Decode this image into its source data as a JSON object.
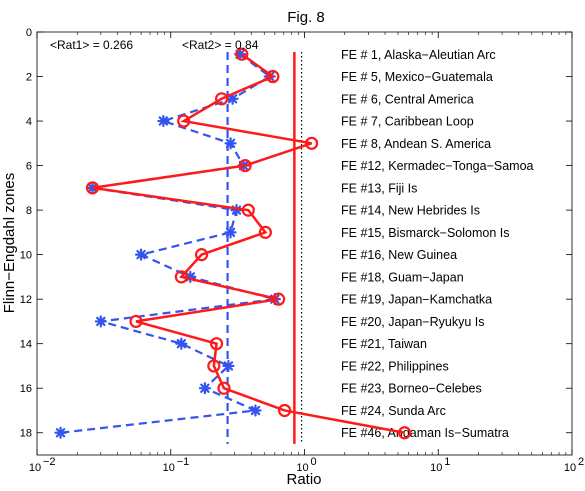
{
  "chart_data": {
    "type": "line",
    "title": "Fig. 8",
    "xlabel": "Ratio",
    "ylabel": "Flinn−Engdahl zones",
    "xscale": "log",
    "xlim": [
      0.01,
      100
    ],
    "ylim": [
      0,
      19
    ],
    "y_reversed": true,
    "grid": false,
    "xticks": [
      0.01,
      0.1,
      1,
      10,
      100
    ],
    "xtick_labels": [
      [
        "10",
        "−2"
      ],
      [
        "10",
        "−1"
      ],
      [
        "10",
        "0"
      ],
      [
        "10",
        "1"
      ],
      [
        "10",
        "2"
      ]
    ],
    "yticks": [
      0,
      2,
      4,
      6,
      8,
      10,
      12,
      14,
      16,
      18
    ],
    "ytick_labels": [
      "0",
      "2",
      "4",
      "6",
      "8",
      "10",
      "12",
      "14",
      "16",
      "18"
    ],
    "annotations": {
      "rat1": "<Rat1> = 0.266",
      "rat2": "<Rat2> = 0.84"
    },
    "zone_labels": [
      "FE # 1, Alaska−Aleutian Arc",
      "FE # 5, Mexico−Guatemala",
      "FE # 6, Central America",
      "FE # 7, Caribbean Loop",
      "FE # 8, Andean S. America",
      "FE #12, Kermadec−Tonga−Samoa",
      "FE #13, Fiji Is",
      "FE #14, New Hebrides Is",
      "FE #15, Bismarck−Solomon Is",
      "FE #16, New Guinea",
      "FE #18, Guam−Japan",
      "FE #19, Japan−Kamchatka",
      "FE #20, Japan−Ryukyu Is",
      "FE #21, Taiwan",
      "FE #22, Philippines",
      "FE #23, Borneo−Celebes",
      "FE #24, Sunda Arc",
      "FE #46, Andaman Is−Sumatra"
    ],
    "series": [
      {
        "marker": "asterisk",
        "style": "dashed",
        "color": "#3355ee",
        "y": [
          1,
          2,
          3,
          4,
          5,
          6,
          7,
          8,
          9,
          10,
          11,
          12,
          13,
          14,
          15,
          16,
          17,
          18
        ],
        "x": [
          0.33,
          0.55,
          0.29,
          0.088,
          0.28,
          0.35,
          0.026,
          0.31,
          0.28,
          0.06,
          0.14,
          0.6,
          0.03,
          0.12,
          0.27,
          0.18,
          0.43,
          0.015
        ]
      },
      {
        "marker": "circle",
        "style": "solid",
        "color": "#ff1a1a",
        "y": [
          1,
          2,
          3,
          4,
          5,
          6,
          7,
          8,
          9,
          10,
          11,
          12,
          13,
          14,
          15,
          16,
          17,
          18
        ],
        "x": [
          0.34,
          0.58,
          0.24,
          0.125,
          1.13,
          0.36,
          0.026,
          0.38,
          0.51,
          0.17,
          0.12,
          0.64,
          0.055,
          0.22,
          0.21,
          0.25,
          0.71,
          5.6
        ]
      }
    ],
    "reference_lines": [
      {
        "x": 0.266,
        "style": "dashed",
        "color": "#3355ee"
      },
      {
        "x": 0.84,
        "style": "solid",
        "color": "#ff1a1a"
      },
      {
        "x": 0.95,
        "style": "dotted",
        "color": "#000000"
      }
    ],
    "reference_line_yrange": [
      0.9,
      18.5
    ]
  }
}
